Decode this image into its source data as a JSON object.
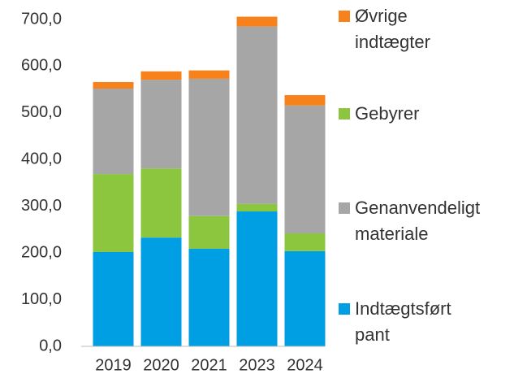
{
  "chart_data": {
    "type": "stacked_bar",
    "categories": [
      "2019",
      "2020",
      "2021",
      "2023",
      "2024"
    ],
    "series": [
      {
        "name": "Indtægtsført pant",
        "color": "#009fe3",
        "values": [
          202,
          233,
          209,
          289,
          204
        ]
      },
      {
        "name": "Gebyrer",
        "color": "#8cc63f",
        "values": [
          167,
          148,
          70,
          16,
          38
        ]
      },
      {
        "name": "Genanvendeligt materiale",
        "color": "#a6a6a6",
        "values": [
          183,
          190,
          294,
          380,
          274
        ]
      },
      {
        "name": "Øvrige indtægter",
        "color": "#f7821b",
        "values": [
          14,
          18,
          18,
          21,
          22
        ]
      }
    ],
    "ylim": [
      0,
      700
    ],
    "yticks": [
      {
        "value": 0,
        "label": "0,0"
      },
      {
        "value": 100,
        "label": "100,0"
      },
      {
        "value": 200,
        "label": "200,0"
      },
      {
        "value": 300,
        "label": "300,0"
      },
      {
        "value": 400,
        "label": "400,0"
      },
      {
        "value": 500,
        "label": "500,0"
      },
      {
        "value": 600,
        "label": "600,0"
      },
      {
        "value": 700,
        "label": "700,0"
      }
    ],
    "grid": false,
    "legend": "right"
  }
}
